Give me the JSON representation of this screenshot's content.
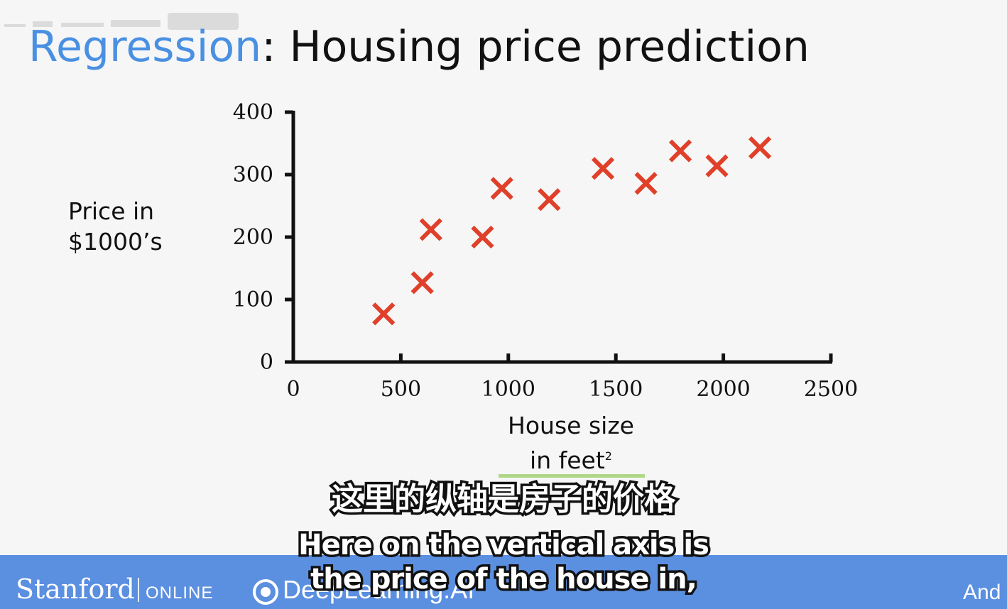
{
  "title": {
    "accent_word": "Regression",
    "rest": ": Housing price prediction"
  },
  "colors": {
    "accent": "#4a90e2",
    "marker": "#e0402a",
    "footer": "#5b8fe0"
  },
  "chart_data": {
    "type": "scatter",
    "ylabel_line1": "Price in",
    "ylabel_line2": "$1000’s",
    "xlabel_line1": "House size",
    "xlabel_line2": "in feet",
    "xlabel_superscript": "2",
    "xlim": [
      0,
      2500
    ],
    "ylim": [
      0,
      400
    ],
    "xticks": [
      0,
      500,
      1000,
      1500,
      2000,
      2500
    ],
    "yticks": [
      0,
      100,
      200,
      300,
      400
    ],
    "grid": false,
    "marker": "x",
    "points": [
      {
        "x": 420,
        "y": 77
      },
      {
        "x": 600,
        "y": 127
      },
      {
        "x": 640,
        "y": 212
      },
      {
        "x": 880,
        "y": 200
      },
      {
        "x": 970,
        "y": 278
      },
      {
        "x": 1190,
        "y": 260
      },
      {
        "x": 1440,
        "y": 310
      },
      {
        "x": 1640,
        "y": 286
      },
      {
        "x": 1800,
        "y": 338
      },
      {
        "x": 1970,
        "y": 314
      },
      {
        "x": 2170,
        "y": 343
      }
    ]
  },
  "subtitles": {
    "chinese": "这里的纵轴是房子的价格",
    "english_line1": "Here on the vertical axis is",
    "english_line2": "the price of the house in,"
  },
  "footer": {
    "stanford": "Stanford",
    "online": "ONLINE",
    "deeplearning": "DeepLearning.AI",
    "partial_name": "And"
  }
}
